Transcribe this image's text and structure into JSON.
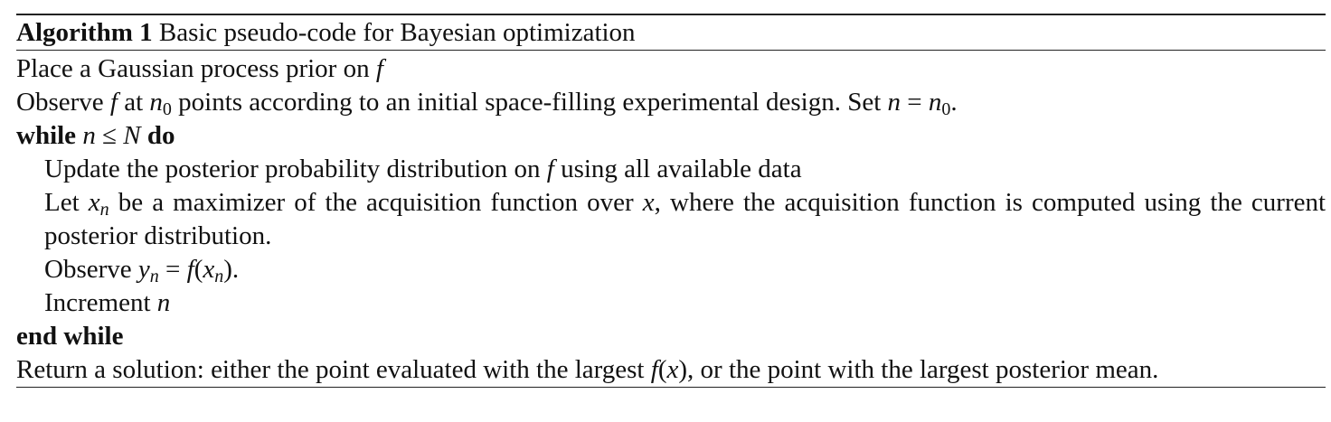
{
  "algorithm": {
    "label": "Algorithm 1",
    "title": "Basic pseudo-code for Bayesian optimization"
  },
  "lines": {
    "l1": {
      "text": "Place a Gaussian process prior on",
      "var": "f"
    },
    "l2": {
      "t1": "Observe",
      "f": "f",
      "t2": "at",
      "n": "n",
      "sub0": "0",
      "t3": "points according to an initial space-filling experimental design. Set",
      "n2": "n",
      "eq": "=",
      "n3": "n",
      "sub0b": "0",
      "end": "."
    },
    "l3": {
      "kw_while": "while",
      "n": "n",
      "leq": "≤",
      "N": "N",
      "kw_do": "do"
    },
    "l4": {
      "text": "Update the posterior probability distribution on",
      "f": "f",
      "tail": "using all available data"
    },
    "l5": {
      "t1": "Let",
      "x": "x",
      "subn": "n",
      "t2": "be a maximizer of the acquisition function over",
      "x2": "x",
      "t3": ", where the acquisition function is computed using the current posterior distribution."
    },
    "l6": {
      "t1": "Observe",
      "y": "y",
      "subn": "n",
      "eq": "=",
      "f": "f",
      "lp": "(",
      "x": "x",
      "subn2": "n",
      "rp": ").",
      "tail": ""
    },
    "l7": {
      "text": "Increment",
      "n": "n"
    },
    "l8": {
      "kw": "end while"
    },
    "l9": {
      "t1": "Return a solution: either the point evaluated with the largest",
      "f": "f",
      "lp": "(",
      "x": "x",
      "rp": ")",
      "t2": ", or the point with the largest posterior mean."
    }
  }
}
